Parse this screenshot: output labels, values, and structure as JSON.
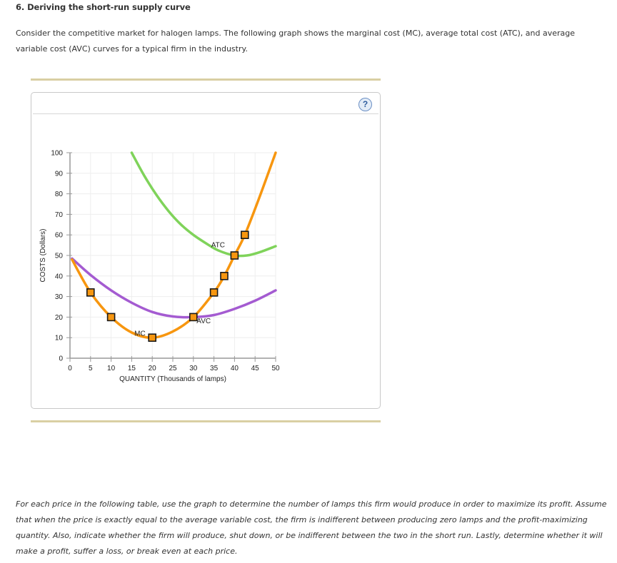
{
  "question": {
    "title": "6. Deriving the short-run supply curve",
    "intro": "Consider the competitive market for halogen lamps. The following graph shows the marginal cost (MC), average total cost (ATC), and average variable cost (AVC) curves for a typical firm in the industry.",
    "instructions": "For each price in the following table, use the graph to determine the number of lamps this firm would produce in order to maximize its profit. Assume that when the price is exactly equal to the average variable cost, the firm is indifferent between producing zero lamps and the profit-maximizing quantity. Also, indicate whether the firm will produce, shut down, or be indifferent between the two in the short run. Lastly, determine whether it will make a profit, suffer a loss, or break even at each price."
  },
  "panel": {
    "help_icon": "question-mark-icon",
    "help_label": "?"
  },
  "colors": {
    "mc": "#f7960f",
    "atc": "#7fd35a",
    "avc": "#a45bd1",
    "marker_fill": "#f7960f",
    "marker_stroke": "#1a1a1a",
    "axis": "#999999",
    "grid": "#eeeeee",
    "gold_bar": "#d9cfa3"
  },
  "chart_data": {
    "type": "line",
    "title": "",
    "xlabel": "QUANTITY (Thousands of lamps)",
    "ylabel": "COSTS (Dollars)",
    "xlim": [
      0,
      50
    ],
    "ylim": [
      0,
      100
    ],
    "x_ticks": [
      0,
      5,
      10,
      15,
      20,
      25,
      30,
      35,
      40,
      45,
      50
    ],
    "y_ticks": [
      0,
      10,
      20,
      30,
      40,
      50,
      60,
      70,
      80,
      90,
      100
    ],
    "grid": true,
    "series": [
      {
        "name": "MC",
        "label_pos": [
          17,
          11
        ],
        "points": [
          [
            0.5,
            48
          ],
          [
            5,
            32
          ],
          [
            10,
            20
          ],
          [
            15,
            12.5
          ],
          [
            20,
            10
          ],
          [
            25,
            13
          ],
          [
            30,
            20
          ],
          [
            35,
            32
          ],
          [
            37.5,
            40
          ],
          [
            40,
            50
          ],
          [
            42.5,
            60
          ],
          [
            46,
            78
          ],
          [
            50,
            100
          ]
        ],
        "markers": [
          [
            5,
            32
          ],
          [
            10,
            20
          ],
          [
            20,
            10
          ],
          [
            30,
            20
          ],
          [
            35,
            32
          ],
          [
            37.5,
            40
          ],
          [
            40,
            50
          ],
          [
            42.5,
            60
          ]
        ]
      },
      {
        "name": "ATC",
        "label_pos": [
          36,
          54
        ],
        "points": [
          [
            15,
            100
          ],
          [
            18,
            89
          ],
          [
            21,
            79.5
          ],
          [
            24,
            71.5
          ],
          [
            27,
            65
          ],
          [
            30,
            60
          ],
          [
            33,
            56
          ],
          [
            36,
            52.5
          ],
          [
            40,
            50
          ],
          [
            43,
            50
          ],
          [
            46,
            51.5
          ],
          [
            50,
            54.5
          ]
        ]
      },
      {
        "name": "AVC",
        "label_pos": [
          32.5,
          17
        ],
        "points": [
          [
            0.5,
            48.5
          ],
          [
            5,
            40.5
          ],
          [
            10,
            33
          ],
          [
            15,
            27
          ],
          [
            20,
            22.5
          ],
          [
            25,
            20.3
          ],
          [
            30,
            20
          ],
          [
            35,
            21
          ],
          [
            40,
            24
          ],
          [
            45,
            28
          ],
          [
            50,
            33
          ]
        ]
      }
    ]
  }
}
